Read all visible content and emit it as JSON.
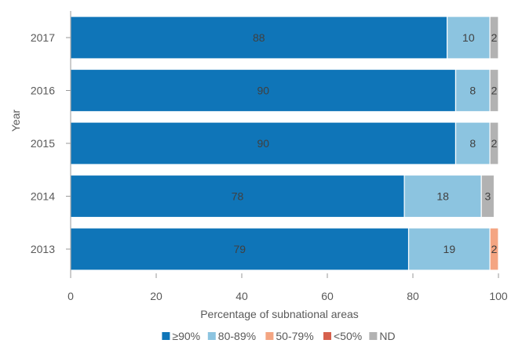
{
  "chart_data": {
    "type": "bar",
    "orientation": "horizontal",
    "stacked": true,
    "title": "",
    "xlabel": "Percentage of subnational areas",
    "ylabel": "Year",
    "xlim": [
      0,
      100
    ],
    "xticks": [
      0,
      20,
      40,
      60,
      80,
      100
    ],
    "grid": false,
    "legend_position": "bottom",
    "categories": [
      "2017",
      "2016",
      "2015",
      "2014",
      "2013"
    ],
    "series": [
      {
        "name": "≥90%",
        "color": "#0f75b8",
        "values": [
          88,
          90,
          90,
          78,
          79
        ],
        "labels": [
          "88",
          "90",
          "90",
          "78",
          "79"
        ]
      },
      {
        "name": "80-89%",
        "color": "#8cc4e0",
        "values": [
          10,
          8,
          8,
          18,
          19
        ],
        "labels": [
          "10",
          "8",
          "8",
          "18",
          "19"
        ]
      },
      {
        "name": "50-79%",
        "color": "#f4a582",
        "values": [
          0,
          0,
          0,
          0,
          2
        ],
        "labels": [
          "",
          "",
          "",
          "",
          "2"
        ]
      },
      {
        "name": "<50%",
        "color": "#d6604d",
        "values": [
          0,
          0,
          0,
          0,
          0
        ],
        "labels": [
          "",
          "",
          "",
          "",
          ""
        ]
      },
      {
        "name": "ND",
        "color": "#b2b2b2",
        "values": [
          2,
          2,
          2,
          3,
          0
        ],
        "labels": [
          "2",
          "2",
          "2",
          "3",
          ""
        ]
      }
    ]
  }
}
